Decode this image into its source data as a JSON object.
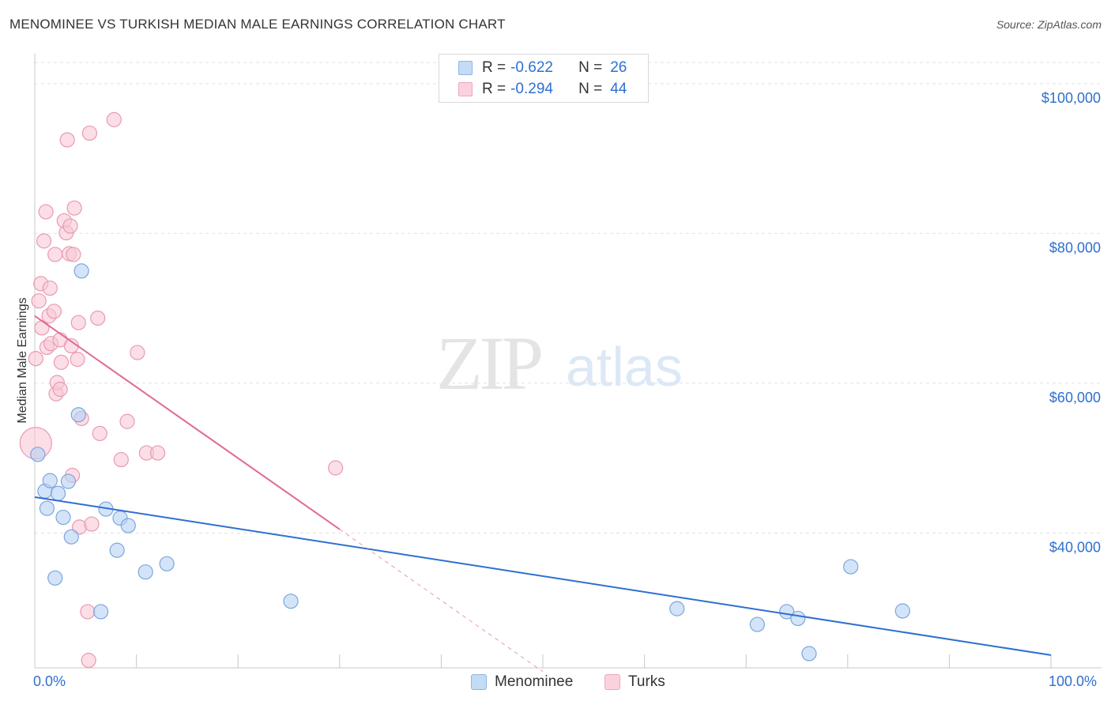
{
  "header": {
    "title": "MENOMINEE VS TURKISH MEDIAN MALE EARNINGS CORRELATION CHART",
    "source": "Source: ZipAtlas.com"
  },
  "watermark": {
    "zip": "ZIP",
    "atlas": "atlas"
  },
  "legend_top": {
    "rows": [
      {
        "r_label": "R =",
        "r_value": "-0.622",
        "n_label": "N =",
        "n_value": "26",
        "color": "#a8c8f0"
      },
      {
        "r_label": "R =",
        "r_value": "-0.294",
        "n_label": "N =",
        "n_value": "44",
        "color": "#f4b8cb"
      }
    ]
  },
  "colors": {
    "menominee_fill": "#b8d2f4",
    "menominee_stroke": "#7aa6dc",
    "menominee_line": "#2e6fd0",
    "turks_fill": "#f8c8d6",
    "turks_stroke": "#e89ab2",
    "turks_line": "#e06a94",
    "axis_text": "#2e6fd0",
    "grid": "#e2e2e2"
  },
  "chart_data": {
    "type": "scatter",
    "title": "MENOMINEE VS TURKISH MEDIAN MALE EARNINGS CORRELATION CHART",
    "xlabel": "",
    "ylabel": "Median Male Earnings",
    "xlim": [
      0,
      100
    ],
    "ylim": [
      22000,
      104000
    ],
    "x_tick_labels": [
      "0.0%",
      "100.0%"
    ],
    "y_ticks": [
      {
        "value": 40000,
        "label": "$40,000"
      },
      {
        "value": 60000,
        "label": "$60,000"
      },
      {
        "value": 80000,
        "label": "$80,000"
      },
      {
        "value": 100000,
        "label": "$100,000"
      }
    ],
    "legend": [
      "Menominee",
      "Turks"
    ],
    "series": [
      {
        "name": "Menominee",
        "r": -0.622,
        "n": 26,
        "trend": {
          "x0": 0,
          "y0": 44800,
          "x1": 100,
          "y1": 23700
        },
        "points": [
          [
            0.3,
            50500
          ],
          [
            1.0,
            45600
          ],
          [
            1.2,
            43300
          ],
          [
            1.5,
            47000
          ],
          [
            2.0,
            34000
          ],
          [
            2.3,
            45300
          ],
          [
            2.8,
            42100
          ],
          [
            3.3,
            46900
          ],
          [
            3.6,
            39500
          ],
          [
            4.3,
            55800
          ],
          [
            4.6,
            75000
          ],
          [
            6.5,
            29500
          ],
          [
            7.0,
            43200
          ],
          [
            8.1,
            37700
          ],
          [
            8.4,
            42000
          ],
          [
            9.2,
            41000
          ],
          [
            10.9,
            34800
          ],
          [
            13.0,
            35900
          ],
          [
            25.2,
            30900
          ],
          [
            63.2,
            29900
          ],
          [
            71.1,
            27800
          ],
          [
            74.0,
            29500
          ],
          [
            75.1,
            28600
          ],
          [
            76.2,
            23900
          ],
          [
            80.3,
            35500
          ],
          [
            85.4,
            29600
          ]
        ]
      },
      {
        "name": "Turks",
        "r": -0.294,
        "n": 44,
        "trend": {
          "x0": 0,
          "y0": 69000,
          "x1": 30,
          "y1": 40500,
          "dashed_to_x": 50,
          "dashed_to_y": 21500
        },
        "points": [
          [
            0.1,
            52000
          ],
          [
            0.1,
            63300
          ],
          [
            0.4,
            71000
          ],
          [
            0.6,
            73300
          ],
          [
            0.7,
            67400
          ],
          [
            0.9,
            79000
          ],
          [
            1.1,
            82900
          ],
          [
            1.2,
            64800
          ],
          [
            1.4,
            69000
          ],
          [
            1.5,
            72700
          ],
          [
            1.6,
            65300
          ],
          [
            1.9,
            69600
          ],
          [
            2.0,
            77200
          ],
          [
            2.1,
            58600
          ],
          [
            2.2,
            60100
          ],
          [
            2.5,
            65800
          ],
          [
            2.5,
            59200
          ],
          [
            2.6,
            62800
          ],
          [
            2.9,
            81700
          ],
          [
            3.1,
            80100
          ],
          [
            3.2,
            92500
          ],
          [
            3.4,
            77300
          ],
          [
            3.5,
            81000
          ],
          [
            3.6,
            65000
          ],
          [
            3.7,
            47700
          ],
          [
            3.8,
            77200
          ],
          [
            3.9,
            83400
          ],
          [
            4.2,
            63200
          ],
          [
            4.3,
            68100
          ],
          [
            4.4,
            40800
          ],
          [
            4.6,
            55300
          ],
          [
            5.2,
            29500
          ],
          [
            5.3,
            23000
          ],
          [
            5.4,
            93400
          ],
          [
            5.6,
            41200
          ],
          [
            6.2,
            68700
          ],
          [
            6.4,
            53300
          ],
          [
            7.8,
            95200
          ],
          [
            8.5,
            49800
          ],
          [
            9.1,
            54900
          ],
          [
            10.1,
            64100
          ],
          [
            11.0,
            50700
          ],
          [
            12.1,
            50700
          ],
          [
            29.6,
            48700
          ]
        ]
      }
    ]
  }
}
